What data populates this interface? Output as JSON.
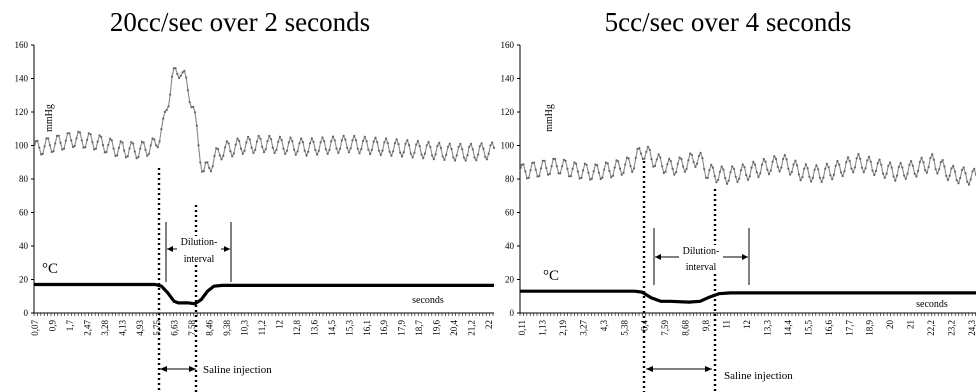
{
  "chart_data": [
    {
      "type": "line",
      "title": "20cc/sec over 2 seconds",
      "ylabel": "mmHg",
      "temp_label": "°C",
      "xlabel": "seconds",
      "ylim": [
        0,
        160
      ],
      "yticks": [
        "0",
        "20",
        "40",
        "60",
        "80",
        "100",
        "120",
        "140",
        "160"
      ],
      "xticks": [
        "0,07",
        "0,9",
        "1,7",
        "2,47",
        "3,28",
        "4,13",
        "4,93",
        "5,75",
        "6,63",
        "7,58",
        "8,46",
        "9,38",
        "10,3",
        "11,2",
        "12",
        "12,8",
        "13,6",
        "14,5",
        "15,3",
        "16,1",
        "16,9",
        "17,9",
        "18,7",
        "19,6",
        "20,4",
        "21,2",
        "22"
      ],
      "series": [
        {
          "color": "#888888",
          "x": [
            0,
            1,
            2,
            3,
            4,
            5,
            5.8,
            6.2,
            6.6,
            7,
            7.4,
            7.6,
            8.1,
            8.6,
            9,
            10,
            11,
            12,
            13,
            14,
            15,
            16,
            17,
            18,
            19,
            20,
            21,
            22
          ],
          "y": [
            98,
            101,
            104,
            102,
            98,
            97,
            100,
            112,
            140,
            146,
            133,
            123,
            83,
            92,
            97,
            100,
            101,
            100,
            99,
            100,
            101,
            100,
            99,
            98,
            97,
            96,
            96,
            97
          ]
        },
        {
          "color": "#000000",
          "x": [
            0,
            5.8,
            6.1,
            6.4,
            6.7,
            6.9,
            7.4,
            7.7,
            8.0,
            8.3,
            8.6,
            9.0,
            22
          ],
          "y": [
            17,
            17,
            16,
            12,
            7,
            6,
            6,
            5.5,
            8,
            13,
            16,
            16.5,
            16.5
          ]
        }
      ],
      "annotations": {
        "dilution": "Dilution-interval",
        "saline": "Saline injection"
      }
    },
    {
      "type": "line",
      "title": "5cc/sec over 4 seconds",
      "ylabel": "mmHg",
      "temp_label": "°C",
      "xlabel": "seconds",
      "ylim": [
        0,
        160
      ],
      "yticks": [
        "0",
        "20",
        "40",
        "60",
        "80",
        "100",
        "120",
        "140",
        "160"
      ],
      "xticks": [
        "0,11",
        "1,13",
        "2,19",
        "3,27",
        "4,3",
        "5,38",
        "6,4",
        "7,59",
        "8,68",
        "9,8",
        "11",
        "12",
        "13,3",
        "14,4",
        "15,5",
        "16,6",
        "17,7",
        "18,9",
        "20",
        "21",
        "22,2",
        "23,2",
        "24,3"
      ],
      "series": [
        {
          "color": "#888888",
          "x": [
            0,
            1,
            2,
            3,
            4,
            5,
            6,
            6.5,
            7,
            7.5,
            8,
            8.5,
            9,
            9.5,
            10,
            11,
            12,
            13,
            14,
            15,
            16,
            17,
            18,
            19,
            20,
            21,
            22,
            23,
            24.3
          ],
          "y": [
            84,
            86,
            88,
            85,
            84,
            86,
            89,
            97,
            93,
            89,
            87,
            88,
            90,
            93,
            84,
            82,
            84,
            87,
            90,
            84,
            83,
            86,
            90,
            87,
            84,
            86,
            90,
            83,
            81
          ]
        },
        {
          "color": "#000000",
          "x": [
            0,
            6.1,
            6.5,
            7,
            7.5,
            8,
            9,
            9.6,
            10.1,
            10.6,
            11.2,
            12,
            24.3
          ],
          "y": [
            13,
            13,
            12.5,
            9,
            7,
            7,
            6.5,
            7,
            9.5,
            11.5,
            12,
            12,
            12
          ]
        }
      ],
      "annotations": {
        "dilution": "Dilution-interval",
        "saline": "Saline injection"
      }
    }
  ]
}
